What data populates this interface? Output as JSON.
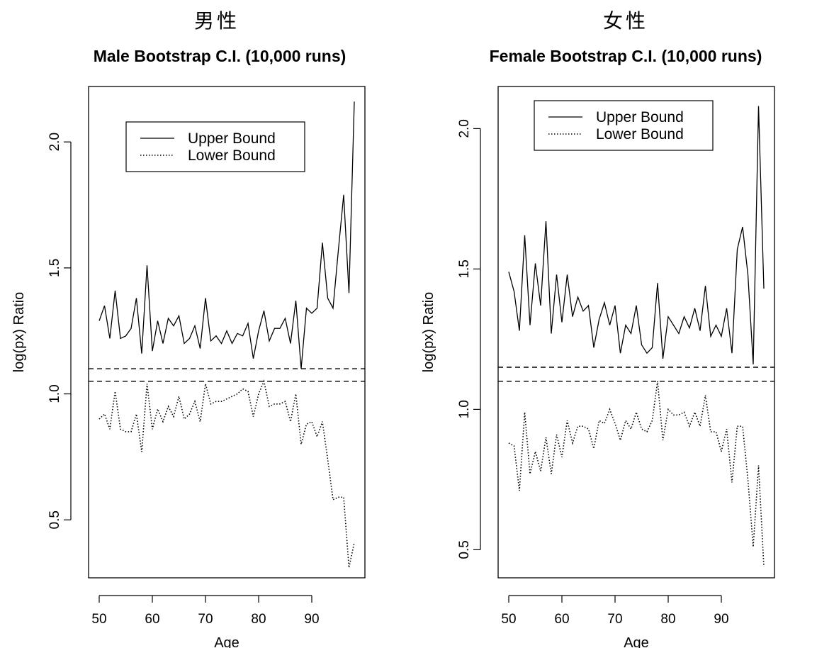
{
  "chart_data": [
    {
      "type": "line",
      "panel_label": "男性",
      "title": "Male Bootstrap C.I. (10,000 runs)",
      "xlabel": "Age",
      "ylabel": "log(px) Ratio",
      "xlim": [
        48,
        100
      ],
      "ylim": [
        0.27,
        2.22
      ],
      "xticks": [
        50,
        60,
        70,
        80,
        90
      ],
      "yticks": [
        0.5,
        1.0,
        1.5,
        2.0
      ],
      "grid": false,
      "legend_position": "top-center",
      "reference_lines": [
        1.1,
        1.05
      ],
      "x": [
        50,
        51,
        52,
        53,
        54,
        55,
        56,
        57,
        58,
        59,
        60,
        61,
        62,
        63,
        64,
        65,
        66,
        67,
        68,
        69,
        70,
        71,
        72,
        73,
        74,
        75,
        76,
        77,
        78,
        79,
        80,
        81,
        82,
        83,
        84,
        85,
        86,
        87,
        88,
        89,
        90,
        91,
        92,
        93,
        94,
        95,
        96,
        97,
        98
      ],
      "series": [
        {
          "name": "Upper Bound",
          "style": "solid",
          "values": [
            1.29,
            1.35,
            1.22,
            1.41,
            1.22,
            1.23,
            1.26,
            1.38,
            1.16,
            1.51,
            1.17,
            1.29,
            1.2,
            1.3,
            1.27,
            1.31,
            1.2,
            1.22,
            1.27,
            1.18,
            1.38,
            1.21,
            1.23,
            1.2,
            1.25,
            1.2,
            1.24,
            1.23,
            1.28,
            1.14,
            1.25,
            1.33,
            1.21,
            1.26,
            1.26,
            1.3,
            1.2,
            1.37,
            1.1,
            1.34,
            1.32,
            1.34,
            1.6,
            1.38,
            1.34,
            1.57,
            1.79,
            1.4,
            2.16
          ]
        },
        {
          "name": "Lower Bound",
          "style": "dotted",
          "values": [
            0.9,
            0.92,
            0.86,
            1.01,
            0.86,
            0.85,
            0.85,
            0.92,
            0.77,
            1.04,
            0.86,
            0.94,
            0.89,
            0.95,
            0.91,
            0.99,
            0.9,
            0.92,
            0.97,
            0.89,
            1.04,
            0.96,
            0.97,
            0.97,
            0.98,
            0.99,
            1.0,
            1.02,
            1.01,
            0.91,
            1.0,
            1.05,
            0.95,
            0.96,
            0.96,
            0.97,
            0.89,
            1.0,
            0.8,
            0.88,
            0.89,
            0.83,
            0.89,
            0.74,
            0.58,
            0.59,
            0.59,
            0.31,
            0.41
          ]
        }
      ]
    },
    {
      "type": "line",
      "panel_label": "女性",
      "title": "Female Bootstrap C.I. (10,000 runs)",
      "xlabel": "Age",
      "ylabel": "log(px) Ratio",
      "xlim": [
        48,
        100
      ],
      "ylim": [
        0.4,
        2.15
      ],
      "xticks": [
        50,
        60,
        70,
        80,
        90
      ],
      "yticks": [
        0.5,
        1.0,
        1.5,
        2.0
      ],
      "grid": false,
      "legend_position": "top-center",
      "reference_lines": [
        1.15,
        1.1
      ],
      "x": [
        50,
        51,
        52,
        53,
        54,
        55,
        56,
        57,
        58,
        59,
        60,
        61,
        62,
        63,
        64,
        65,
        66,
        67,
        68,
        69,
        70,
        71,
        72,
        73,
        74,
        75,
        76,
        77,
        78,
        79,
        80,
        81,
        82,
        83,
        84,
        85,
        86,
        87,
        88,
        89,
        90,
        91,
        92,
        93,
        94,
        95,
        96,
        97,
        98
      ],
      "series": [
        {
          "name": "Upper Bound",
          "style": "solid",
          "values": [
            1.49,
            1.42,
            1.28,
            1.62,
            1.3,
            1.52,
            1.37,
            1.67,
            1.27,
            1.48,
            1.31,
            1.48,
            1.33,
            1.4,
            1.35,
            1.37,
            1.22,
            1.32,
            1.38,
            1.3,
            1.37,
            1.2,
            1.3,
            1.27,
            1.37,
            1.23,
            1.2,
            1.22,
            1.45,
            1.18,
            1.33,
            1.3,
            1.27,
            1.33,
            1.29,
            1.36,
            1.28,
            1.44,
            1.26,
            1.3,
            1.26,
            1.36,
            1.2,
            1.57,
            1.65,
            1.48,
            1.16,
            2.08,
            1.43
          ]
        },
        {
          "name": "Lower Bound",
          "style": "dotted",
          "values": [
            0.88,
            0.87,
            0.71,
            0.99,
            0.77,
            0.85,
            0.78,
            0.9,
            0.77,
            0.91,
            0.83,
            0.96,
            0.88,
            0.94,
            0.94,
            0.93,
            0.86,
            0.96,
            0.95,
            1.0,
            0.95,
            0.89,
            0.96,
            0.93,
            0.99,
            0.93,
            0.92,
            0.96,
            1.1,
            0.89,
            1.0,
            0.98,
            0.98,
            0.99,
            0.94,
            0.99,
            0.94,
            1.05,
            0.92,
            0.92,
            0.85,
            0.93,
            0.74,
            0.94,
            0.94,
            0.75,
            0.51,
            0.8,
            0.44
          ]
        }
      ]
    }
  ]
}
